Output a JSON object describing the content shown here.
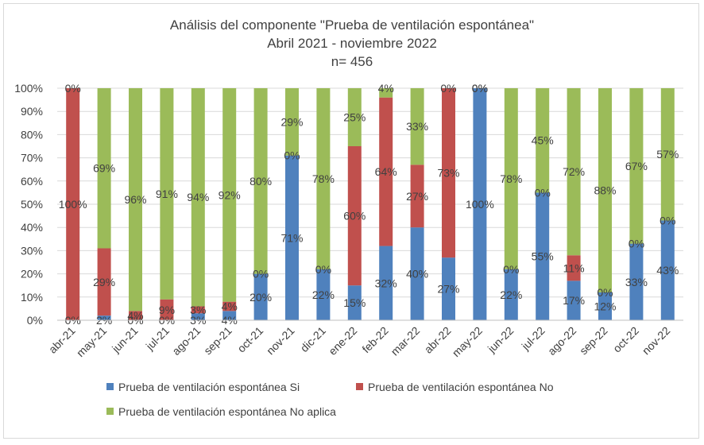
{
  "chart_data": {
    "type": "bar",
    "stacked": true,
    "title": "Análisis del componente \"Prueba de ventilación espontánea\"",
    "subtitle": "Abril 2021 - noviembre 2022",
    "note": "n= 456",
    "ylim": [
      0,
      100
    ],
    "y_ticks": [
      "0%",
      "10%",
      "20%",
      "30%",
      "40%",
      "50%",
      "60%",
      "70%",
      "80%",
      "90%",
      "100%"
    ],
    "grid": true,
    "legend_position": "bottom",
    "categories": [
      "abr-21",
      "may-21",
      "jun-21",
      "jul-21",
      "ago-21",
      "sep-21",
      "oct-21",
      "nov-21",
      "dic-21",
      "ene-22",
      "feb-22",
      "mar-22",
      "abr-22",
      "may-22",
      "jun-22",
      "jul-22",
      "ago-22",
      "sep-22",
      "oct-22",
      "nov-22"
    ],
    "series": [
      {
        "name": "Prueba de ventilación espontánea Si",
        "color": "#4f81bd",
        "values": [
          0,
          2,
          0,
          0,
          3,
          4,
          20,
          71,
          22,
          15,
          32,
          40,
          27,
          100,
          22,
          55,
          17,
          12,
          33,
          43
        ]
      },
      {
        "name": "Prueba de ventilación espontánea No",
        "color": "#c0504d",
        "values": [
          100,
          29,
          4,
          9,
          3,
          4,
          0,
          0,
          0,
          60,
          64,
          27,
          73,
          0,
          0,
          0,
          11,
          0,
          0,
          0
        ]
      },
      {
        "name": "Prueba de ventilación espontánea No aplica",
        "color": "#9bbb59",
        "values": [
          0,
          69,
          96,
          91,
          94,
          92,
          80,
          29,
          78,
          25,
          4,
          33,
          0,
          0,
          78,
          45,
          72,
          88,
          67,
          57
        ]
      }
    ]
  }
}
